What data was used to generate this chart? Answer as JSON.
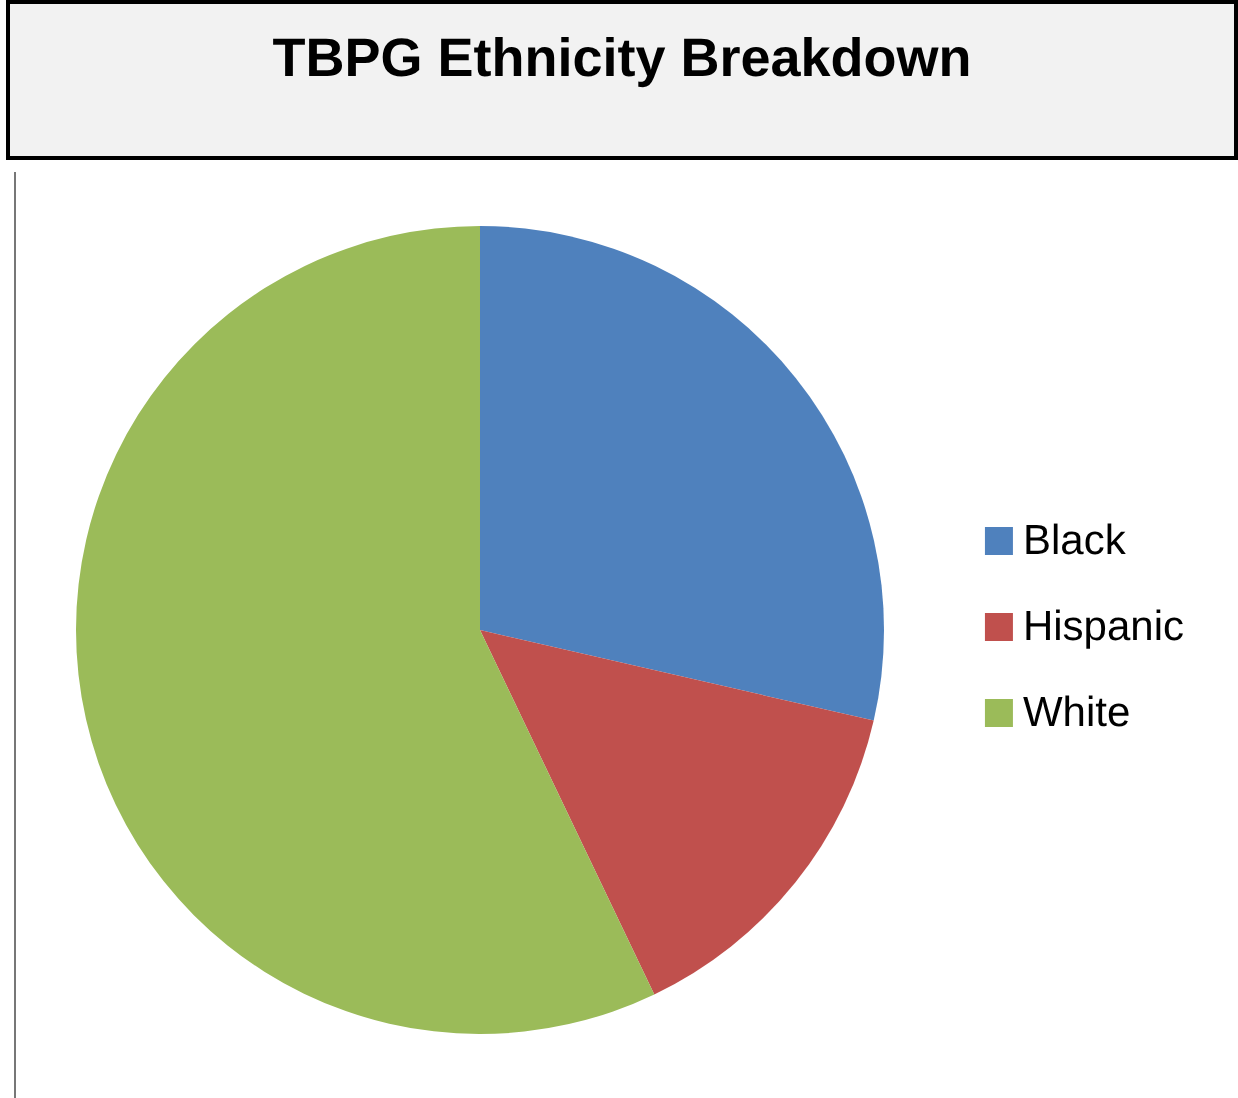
{
  "chart_data": {
    "type": "pie",
    "title": "TBPG Ethnicity Breakdown",
    "categories": [
      "Black",
      "Hispanic",
      "White"
    ],
    "values": [
      28.6,
      14.3,
      57.1
    ],
    "colors": [
      "#4f81bd",
      "#c0504d",
      "#9bbb59"
    ],
    "legend": "right"
  }
}
